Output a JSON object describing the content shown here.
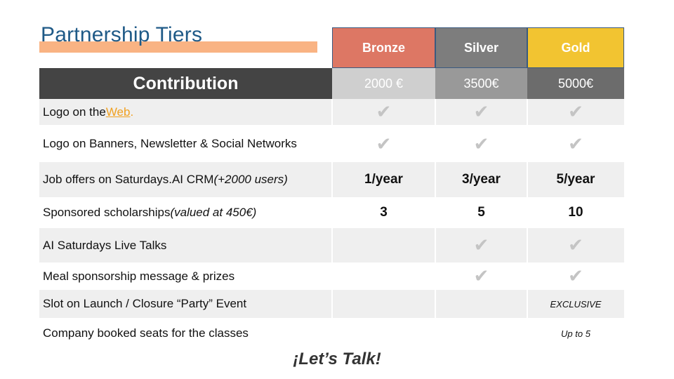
{
  "title": "Partnership Tiers",
  "tiers": [
    {
      "name": "Bronze",
      "price": "2000 €",
      "head_color": "#dd7764",
      "price_color": "#cfcfcf"
    },
    {
      "name": "Silver",
      "price": "3500€",
      "head_color": "#7d7d7d",
      "price_color": "#999999"
    },
    {
      "name": "Gold",
      "price": "5000€",
      "head_color": "#f2c431",
      "price_color": "#6c6c6c"
    }
  ],
  "contribution_label": "Contribution",
  "rows": [
    {
      "label": "Logo on the ",
      "link": "Web",
      "suffix": ".",
      "values": [
        "✔",
        "✔",
        "✔"
      ]
    },
    {
      "label": "Logo on  Banners, Newsletter & Social Networks",
      "values": [
        "✔",
        "✔",
        "✔"
      ]
    },
    {
      "label": "Job offers on  Saturdays.AI CRM ",
      "note": "(+2000 users)",
      "values": [
        "1/year",
        "3/year",
        "5/year"
      ]
    },
    {
      "label": "Sponsored scholarships ",
      "note": "(valued at 450€)",
      "values": [
        "3",
        "5",
        "10"
      ]
    },
    {
      "label": "AI Saturdays Live Talks",
      "values": [
        "",
        "✔",
        "✔"
      ]
    },
    {
      "label": "Meal sponsorship message & prizes",
      "values": [
        "",
        "✔",
        "✔"
      ]
    },
    {
      "label": "Slot on Launch / Closure “Party” Event",
      "values": [
        "",
        "",
        "EXCLUSIVE"
      ]
    },
    {
      "label": "Company booked seats for the classes",
      "values": [
        "",
        "",
        "Up to 5"
      ]
    }
  ],
  "footer": "¡Let’s Talk!"
}
